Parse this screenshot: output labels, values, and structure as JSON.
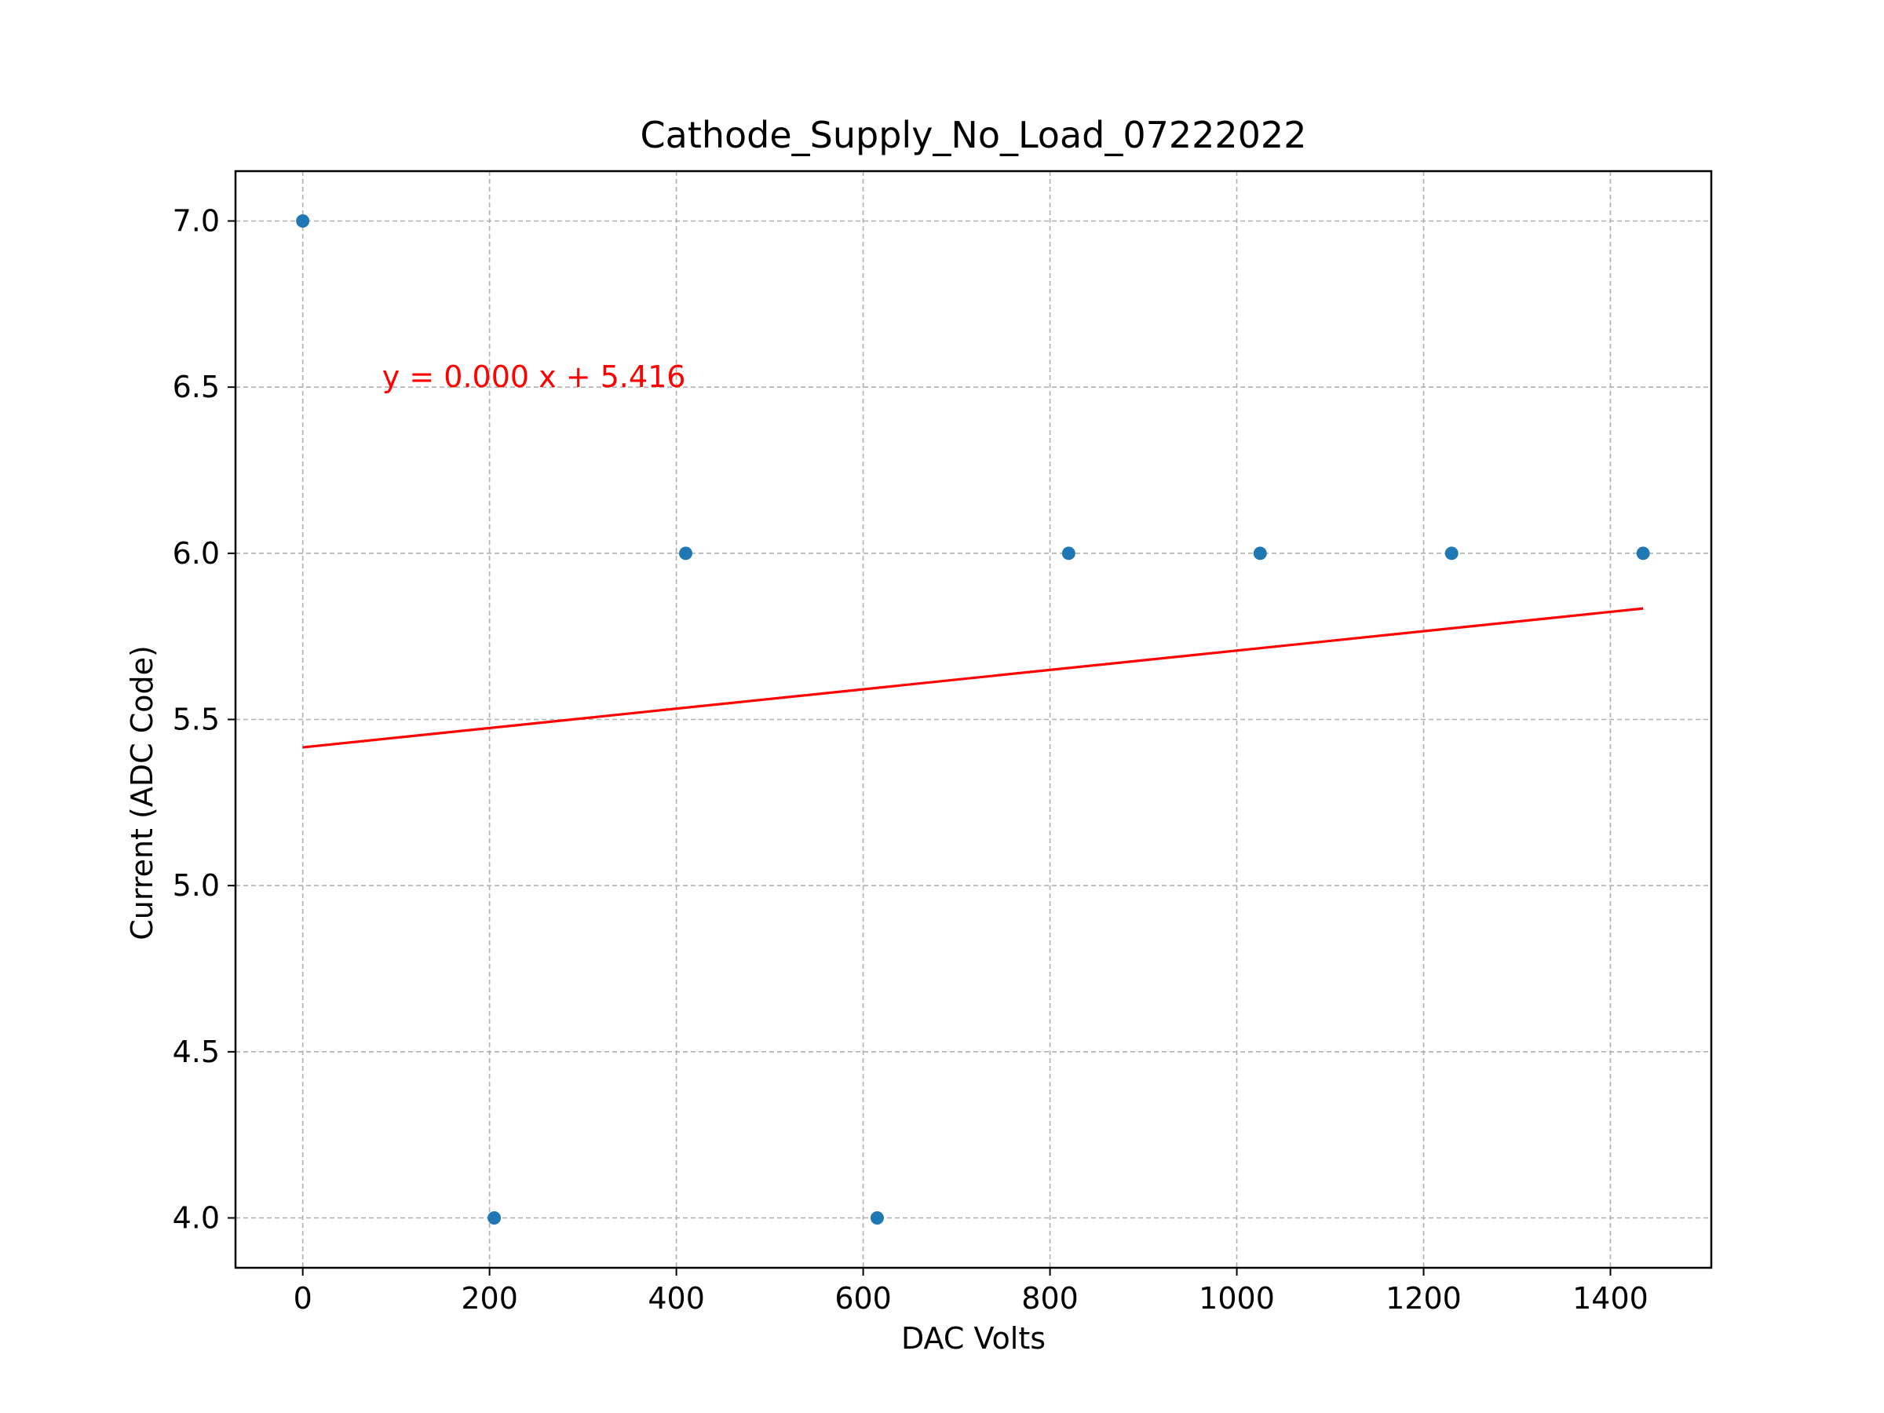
{
  "chart_data": {
    "type": "scatter",
    "title": "Cathode_Supply_No_Load_07222022",
    "xlabel": "DAC Volts",
    "ylabel": "Current (ADC Code)",
    "xlim": [
      -72,
      1508
    ],
    "ylim": [
      3.85,
      7.15
    ],
    "xticks": [
      0,
      200,
      400,
      600,
      800,
      1000,
      1200,
      1400
    ],
    "xtick_labels": [
      "0",
      "200",
      "400",
      "600",
      "800",
      "1000",
      "1200",
      "1400"
    ],
    "yticks": [
      4.0,
      4.5,
      5.0,
      5.5,
      6.0,
      6.5,
      7.0
    ],
    "ytick_labels": [
      "4.0",
      "4.5",
      "5.0",
      "5.5",
      "6.0",
      "6.5",
      "7.0"
    ],
    "grid": true,
    "series": [
      {
        "kind": "scatter",
        "x": [
          0,
          205,
          410,
          615,
          820,
          1025,
          1230,
          1435
        ],
        "y": [
          7,
          4,
          6,
          4,
          6,
          6,
          6,
          6
        ],
        "color": "#1f77b4"
      },
      {
        "kind": "line",
        "x": [
          0,
          1435
        ],
        "y": [
          5.416,
          5.834
        ],
        "color": "#ff0000"
      }
    ],
    "annotations": [
      {
        "text": "y = 0.000 x + 5.416",
        "x": 85,
        "y": 6.5,
        "color": "#ff0000"
      }
    ]
  }
}
